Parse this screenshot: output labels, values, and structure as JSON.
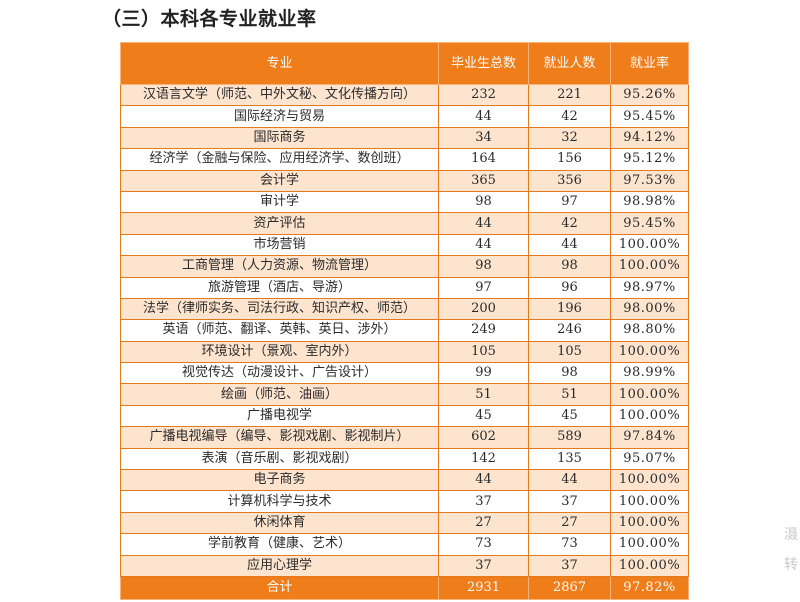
{
  "section_title": "（三）本科各专业就业率",
  "table": {
    "headers": [
      "专业",
      "毕业生总数",
      "就业人数",
      "就业率"
    ],
    "rows": [
      [
        "汉语言文学（师范、中外文秘、文化传播方向）",
        "232",
        "221",
        "95.26%"
      ],
      [
        "国际经济与贸易",
        "44",
        "42",
        "95.45%"
      ],
      [
        "国际商务",
        "34",
        "32",
        "94.12%"
      ],
      [
        "经济学（金融与保险、应用经济学、数创班）",
        "164",
        "156",
        "95.12%"
      ],
      [
        "会计学",
        "365",
        "356",
        "97.53%"
      ],
      [
        "审计学",
        "98",
        "97",
        "98.98%"
      ],
      [
        "资产评估",
        "44",
        "42",
        "95.45%"
      ],
      [
        "市场营销",
        "44",
        "44",
        "100.00%"
      ],
      [
        "工商管理（人力资源、物流管理）",
        "98",
        "98",
        "100.00%"
      ],
      [
        "旅游管理（酒店、导游）",
        "97",
        "96",
        "98.97%"
      ],
      [
        "法学（律师实务、司法行政、知识产权、师范）",
        "200",
        "196",
        "98.00%"
      ],
      [
        "英语（师范、翻译、英韩、英日、涉外）",
        "249",
        "246",
        "98.80%"
      ],
      [
        "环境设计（景观、室内外）",
        "105",
        "105",
        "100.00%"
      ],
      [
        "视觉传达（动漫设计、广告设计）",
        "99",
        "98",
        "98.99%"
      ],
      [
        "绘画（师范、油画）",
        "51",
        "51",
        "100.00%"
      ],
      [
        "广播电视学",
        "45",
        "45",
        "100.00%"
      ],
      [
        "广播电视编导（编导、影视戏剧、影视制片）",
        "602",
        "589",
        "97.84%"
      ],
      [
        "表演（音乐剧、影视戏剧）",
        "142",
        "135",
        "95.07%"
      ],
      [
        "电子商务",
        "44",
        "44",
        "100.00%"
      ],
      [
        "计算机科学与技术",
        "37",
        "37",
        "100.00%"
      ],
      [
        "休闲体育",
        "27",
        "27",
        "100.00%"
      ],
      [
        "学前教育（健康、艺术）",
        "73",
        "73",
        "100.00%"
      ],
      [
        "应用心理学",
        "37",
        "37",
        "100.00%"
      ]
    ],
    "total": [
      "合计",
      "2931",
      "2867",
      "97.82%"
    ]
  },
  "edge_glyphs": [
    "滠",
    "转"
  ],
  "colors": {
    "header_bg": "#ef7d1a",
    "stripe_bg": "#fde4cf",
    "border": "#e57a1d"
  }
}
